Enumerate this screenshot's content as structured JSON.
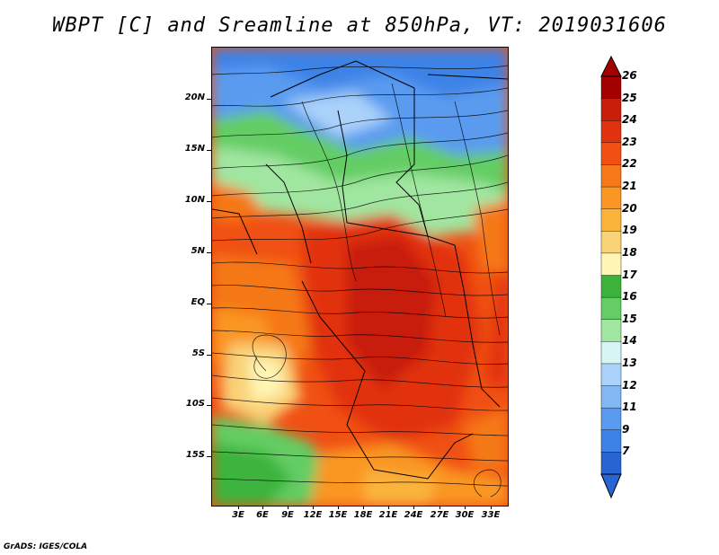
{
  "title": "WBPT [C] and Sreamline at 850hPa, VT: 2019031606",
  "footer": "GrADS: IGES/COLA",
  "axes": {
    "lat_labels": [
      "20N",
      "15N",
      "10N",
      "5N",
      "EQ",
      "5S",
      "10S",
      "15S"
    ],
    "lon_labels": [
      "3E",
      "6E",
      "9E",
      "12E",
      "15E",
      "18E",
      "21E",
      "24E",
      "27E",
      "30E",
      "33E"
    ]
  },
  "colorbar": {
    "labels": [
      "26",
      "25",
      "24",
      "23",
      "22",
      "21",
      "20",
      "19",
      "18",
      "17",
      "16",
      "15",
      "14",
      "13",
      "12",
      "11",
      "9",
      "7"
    ],
    "colors": [
      "#a50000",
      "#c81e0a",
      "#e1320f",
      "#f05014",
      "#f57819",
      "#fa9623",
      "#fab43c",
      "#fad278",
      "#fff5b4",
      "#3cb43c",
      "#64cd64",
      "#a0e6a0",
      "#d7f5f5",
      "#aad2fa",
      "#82b9f5",
      "#5a9bf0",
      "#3c82e6",
      "#2864d2"
    ]
  },
  "map": {
    "variable": "Wet-bulb potential temperature",
    "level": "850hPa",
    "valid_time": "2019031606",
    "overlay": "streamlines"
  }
}
